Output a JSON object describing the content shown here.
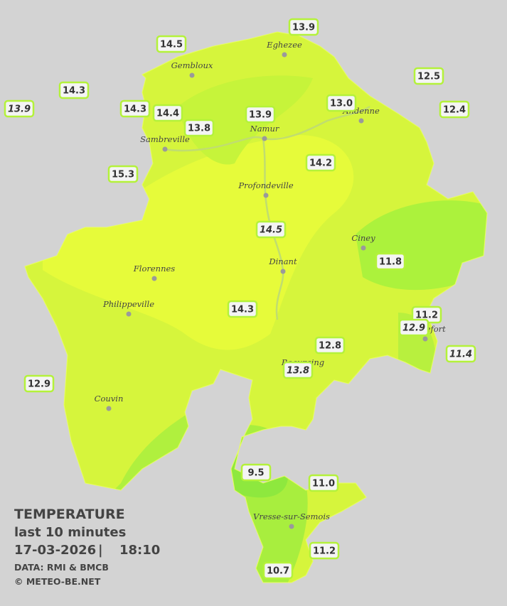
{
  "map": {
    "towns": [
      "Eghezee",
      "Gembloux",
      "Andenne",
      "Namur",
      "Sambreville",
      "Profondeville",
      "Ciney",
      "Dinant",
      "Florennes",
      "Philippeville",
      "Rochefort",
      "Beauraing",
      "Couvin",
      "Vresse-sur-Semois"
    ],
    "stations": [
      "14.5",
      "13.9",
      "14.3",
      "13.9",
      "14.3",
      "14.4",
      "13.8",
      "13.9",
      "13.0",
      "12.5",
      "12.4",
      "15.3",
      "14.2",
      "14.5",
      "11.8",
      "14.3",
      "11.2",
      "12.9",
      "12.8",
      "11.4",
      "13.8",
      "12.9",
      "9.5",
      "11.0",
      "11.2",
      "10.7"
    ]
  },
  "legend": {
    "title": "TEMPERATURE",
    "period": "last 10 minutes",
    "date": "17-03-2026",
    "time": "18:10",
    "source": "DATA: RMI & BMCB",
    "credit": "© METEO-BE.NET"
  }
}
